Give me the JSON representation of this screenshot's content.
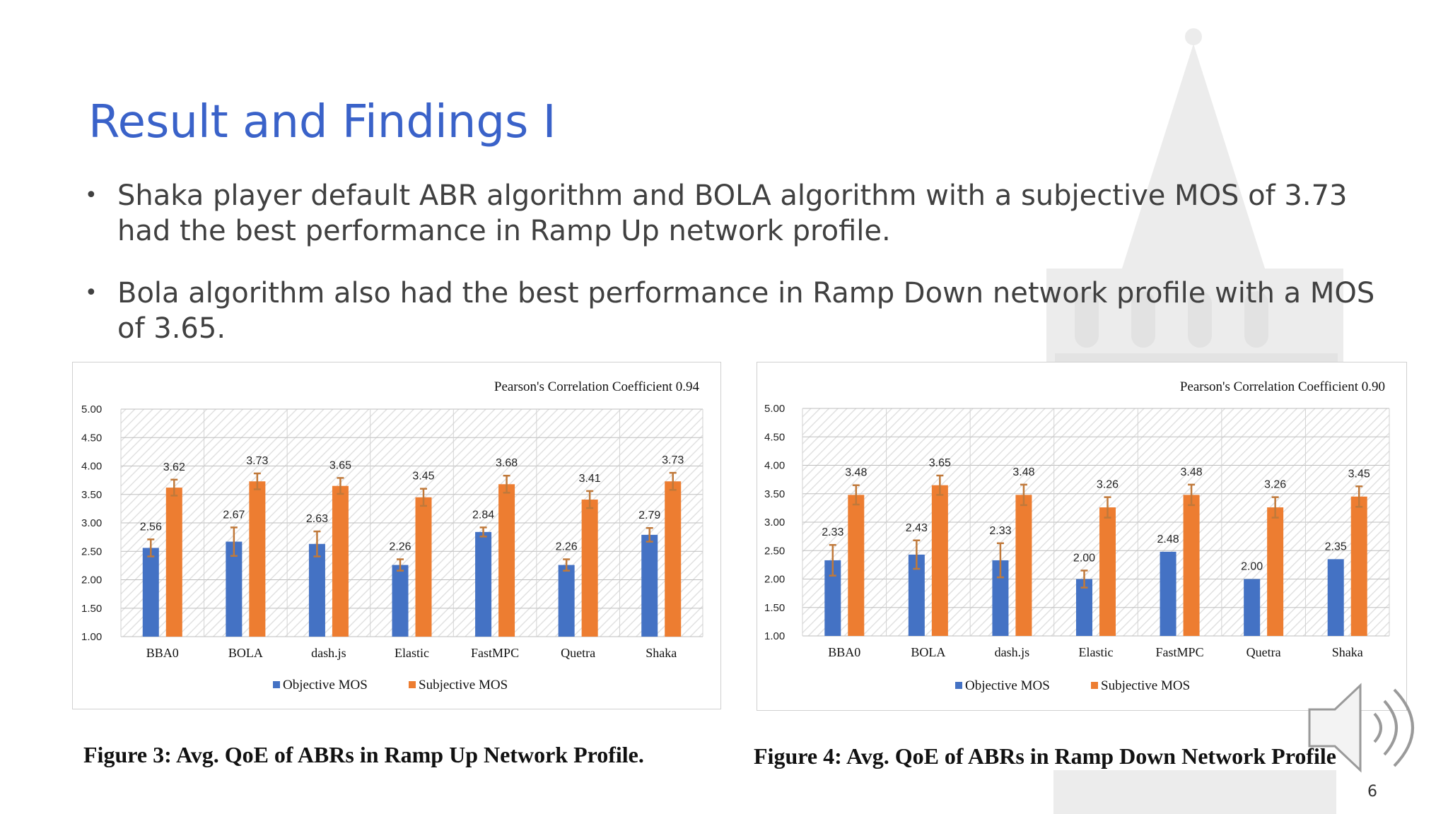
{
  "slide": {
    "title": "Result and Findings I",
    "bullets": [
      "Shaka player default ABR algorithm and BOLA algorithm with a subjective MOS of 3.73 had the best performance in Ramp Up network profile.",
      "Bola algorithm also had the best performance in Ramp Down network profile with a MOS of 3.65."
    ],
    "page_number": "6"
  },
  "captions": [
    "Figure 3: Avg. QoE of ABRs in Ramp Up Network Profile.",
    "Figure 4: Avg. QoE of ABRs in Ramp Down Network Profile"
  ],
  "icons": {
    "watermark": "building-watermark-icon",
    "audio": "speaker-icon"
  },
  "chart_data": [
    {
      "type": "bar",
      "annotation": "Pearson's Correlation Coefficient 0.94",
      "categories": [
        "BBA0",
        "BOLA",
        "dash.js",
        "Elastic",
        "FastMPC",
        "Quetra",
        "Shaka"
      ],
      "series": [
        {
          "name": "Objective MOS",
          "color": "#4472c4",
          "values": [
            2.56,
            2.67,
            2.63,
            2.26,
            2.84,
            2.26,
            2.79
          ],
          "errors": [
            0.15,
            0.25,
            0.22,
            0.1,
            0.08,
            0.1,
            0.12
          ]
        },
        {
          "name": "Subjective MOS",
          "color": "#ed7d31",
          "values": [
            3.62,
            3.73,
            3.65,
            3.45,
            3.68,
            3.41,
            3.73
          ],
          "errors": [
            0.14,
            0.14,
            0.14,
            0.15,
            0.15,
            0.15,
            0.15
          ]
        }
      ],
      "y_ticks": [
        "1.00",
        "1.50",
        "2.00",
        "2.50",
        "3.00",
        "3.50",
        "4.00",
        "4.50",
        "5.00"
      ],
      "ylim": [
        1,
        5
      ],
      "grid": true,
      "legend": "bottom",
      "error_bar_color": "#c0793a"
    },
    {
      "type": "bar",
      "annotation": "Pearson's Correlation Coefficient 0.90",
      "categories": [
        "BBA0",
        "BOLA",
        "dash.js",
        "Elastic",
        "FastMPC",
        "Quetra",
        "Shaka"
      ],
      "series": [
        {
          "name": "Objective MOS",
          "color": "#4472c4",
          "values": [
            2.33,
            2.43,
            2.33,
            2.0,
            2.48,
            2.0,
            2.35
          ],
          "errors": [
            0.27,
            0.25,
            0.3,
            0.15,
            0,
            0,
            0
          ]
        },
        {
          "name": "Subjective MOS",
          "color": "#ed7d31",
          "values": [
            3.48,
            3.65,
            3.48,
            3.26,
            3.48,
            3.26,
            3.45
          ],
          "errors": [
            0.17,
            0.17,
            0.18,
            0.18,
            0.18,
            0.18,
            0.18
          ]
        }
      ],
      "y_ticks": [
        "1.00",
        "1.50",
        "2.00",
        "2.50",
        "3.00",
        "3.50",
        "4.00",
        "4.50",
        "5.00"
      ],
      "ylim": [
        1,
        5
      ],
      "grid": true,
      "legend": "bottom",
      "error_bar_color": "#c0793a"
    }
  ]
}
